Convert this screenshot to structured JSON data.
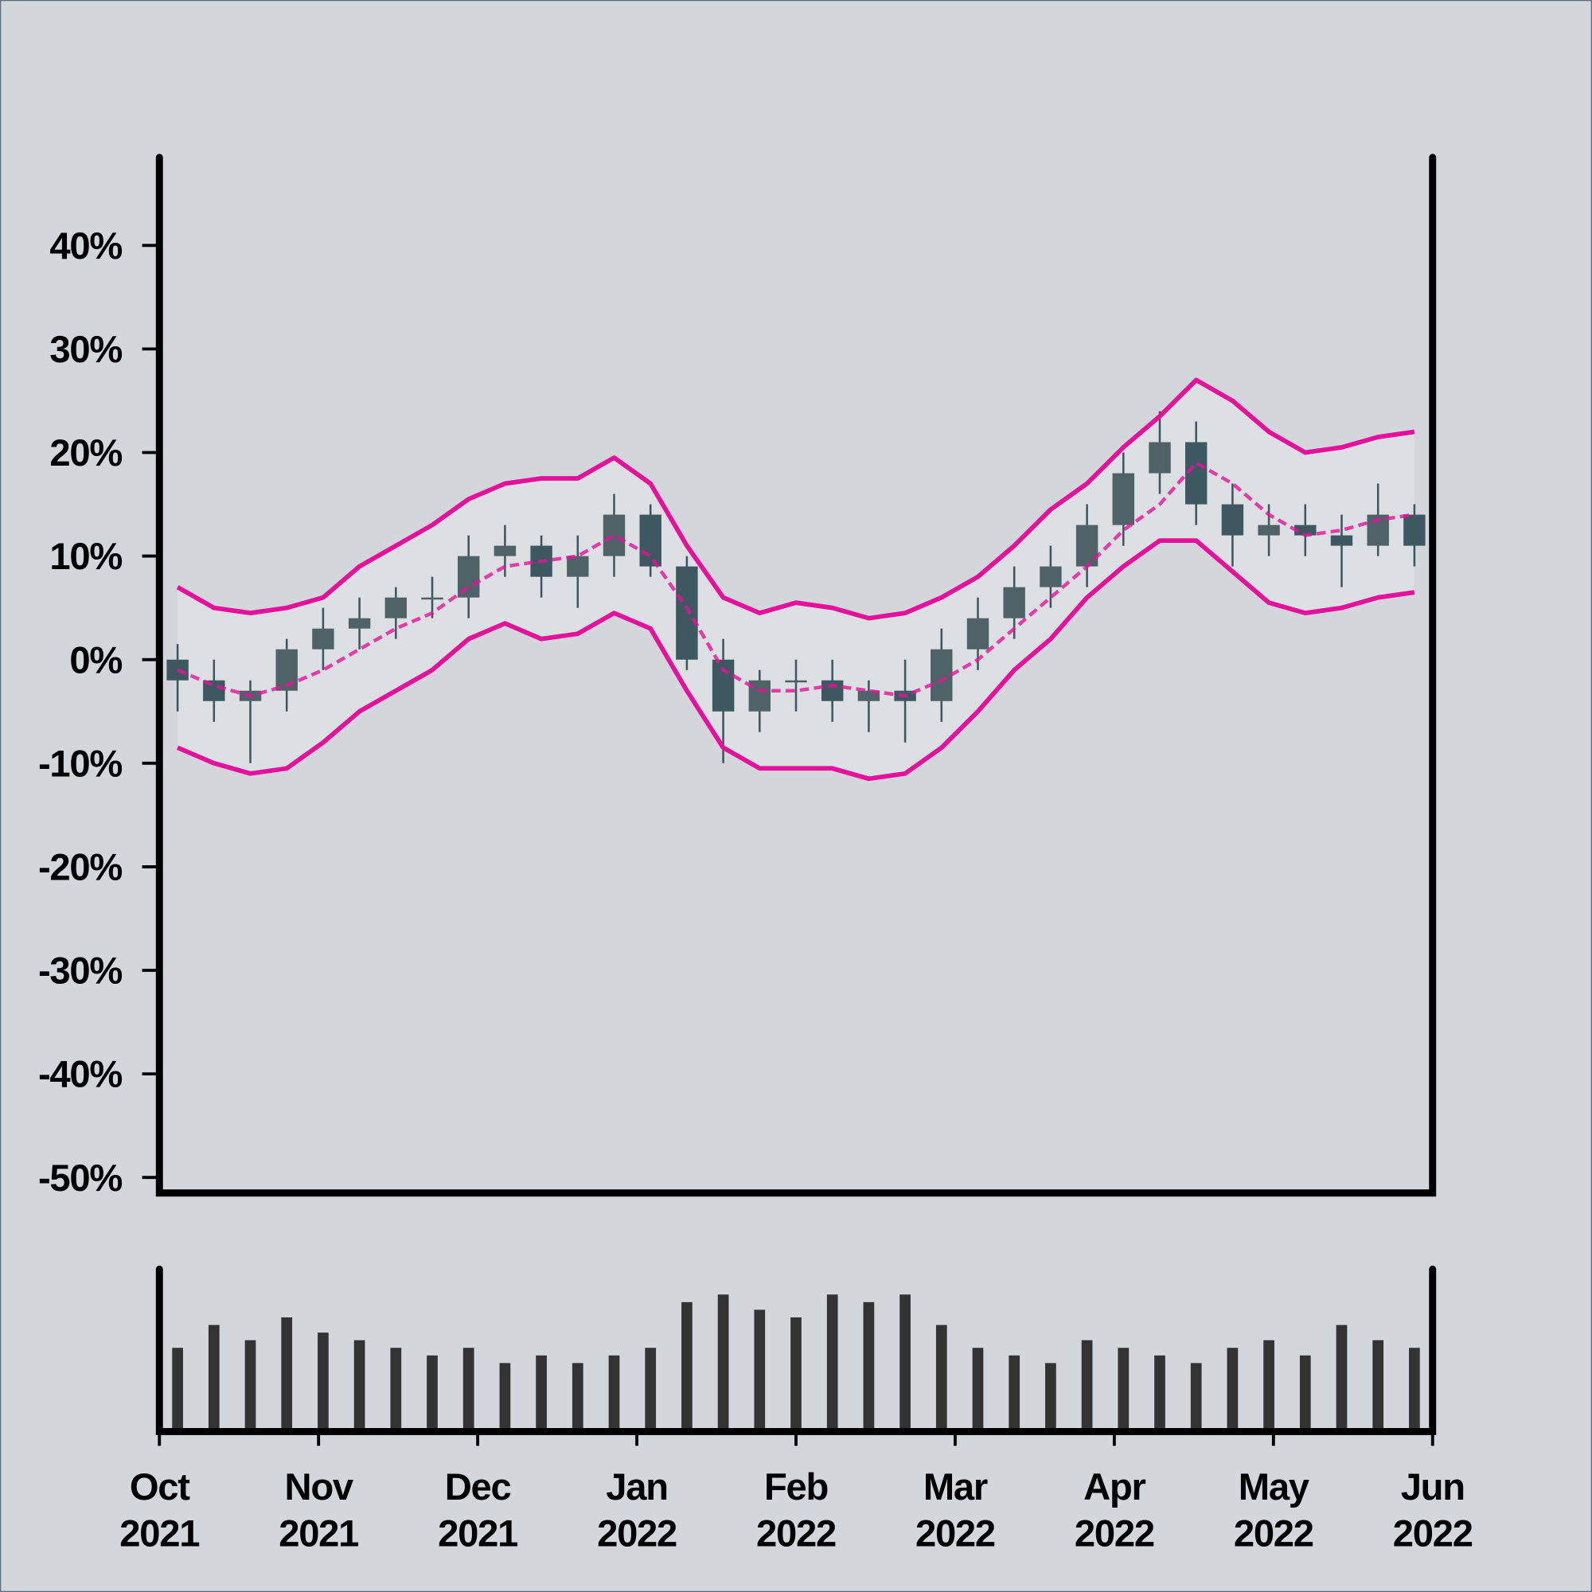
{
  "chart_data": {
    "type": "candlestick",
    "xlim": [
      "2021-10",
      "2022-06"
    ],
    "xticks": [
      {
        "value": "2021-10",
        "label": [
          "Oct",
          "2021"
        ]
      },
      {
        "value": "2021-11",
        "label": [
          "Nov",
          "2021"
        ]
      },
      {
        "value": "2021-12",
        "label": [
          "Dec",
          "2021"
        ]
      },
      {
        "value": "2022-01",
        "label": [
          "Jan",
          "2022"
        ]
      },
      {
        "value": "2022-02",
        "label": [
          "Feb",
          "2022"
        ]
      },
      {
        "value": "2022-03",
        "label": [
          "Mar",
          "2022"
        ]
      },
      {
        "value": "2022-04",
        "label": [
          "Apr",
          "2022"
        ]
      },
      {
        "value": "2022-05",
        "label": [
          "May",
          "2022"
        ]
      },
      {
        "value": "2022-06",
        "label": [
          "Jun",
          "2022"
        ]
      }
    ],
    "ylim": [
      -51.5,
      48.5
    ],
    "yticks": [
      {
        "value": 40,
        "label": "40%"
      },
      {
        "value": 30,
        "label": "30%"
      },
      {
        "value": 20,
        "label": "20%"
      },
      {
        "value": 10,
        "label": "10%"
      },
      {
        "value": 0,
        "label": "0%"
      },
      {
        "value": -10,
        "label": "-10%"
      },
      {
        "value": -20,
        "label": "-20%"
      },
      {
        "value": -30,
        "label": "-30%"
      },
      {
        "value": -40,
        "label": "-40%"
      },
      {
        "value": -50,
        "label": "-50%"
      }
    ],
    "candles": {
      "color": "#3d5860",
      "open": [
        0,
        -2,
        -4,
        -3,
        1,
        3,
        4,
        6,
        6,
        10,
        11,
        8,
        10,
        14,
        9,
        0,
        -5,
        -2,
        -2,
        -4,
        -3,
        -4,
        1,
        4,
        7,
        9,
        13,
        18,
        21,
        15,
        12,
        13,
        12,
        11,
        14
      ],
      "high": [
        1.5,
        0,
        -2,
        2,
        5,
        6,
        7,
        8,
        12,
        13,
        12,
        12,
        16,
        15,
        10,
        2,
        -1,
        0,
        0,
        -2,
        0,
        3,
        6,
        9,
        11,
        15,
        20,
        24,
        23,
        17,
        15,
        15,
        14,
        17,
        15
      ],
      "low": [
        -5,
        -6,
        -10,
        -5,
        -1,
        1,
        2,
        4,
        4,
        8,
        6,
        5,
        8,
        8,
        -1,
        -10,
        -7,
        -5,
        -6,
        -7,
        -8,
        -6,
        -1,
        2,
        5,
        7,
        11,
        16,
        13,
        9,
        10,
        10,
        7,
        10,
        9
      ],
      "close": [
        -2,
        -4,
        -3,
        1,
        3,
        4,
        6,
        6,
        10,
        11,
        8,
        10,
        14,
        9,
        0,
        -5,
        -2,
        -2,
        -4,
        -3,
        -4,
        1,
        4,
        7,
        9,
        13,
        18,
        21,
        15,
        12,
        13,
        12,
        11,
        14,
        11
      ]
    },
    "bands": {
      "color": "#e6119a",
      "upper": [
        7,
        5,
        4.5,
        5,
        6,
        9,
        11,
        13,
        15.5,
        17,
        17.5,
        17.5,
        19.5,
        17,
        11,
        6,
        4.5,
        5.5,
        5,
        4,
        4.5,
        6,
        8,
        11,
        14.5,
        17,
        20.5,
        23.5,
        27,
        25,
        22,
        20,
        20.5,
        21.5,
        22
      ],
      "middle": [
        -1,
        -2.5,
        -3.5,
        -2.5,
        -1,
        1,
        3,
        4.5,
        7,
        9,
        9.5,
        10,
        12,
        10,
        5,
        -1,
        -3,
        -3,
        -2.5,
        -3,
        -3.5,
        -2,
        0,
        3,
        6,
        9,
        12.5,
        15,
        19,
        17,
        14,
        12,
        12.5,
        13.5,
        14
      ],
      "lower": [
        -8.5,
        -10,
        -11,
        -10.5,
        -8,
        -5,
        -3,
        -1,
        2,
        3.5,
        2,
        2.5,
        4.5,
        3,
        -3,
        -8.5,
        -10.5,
        -10.5,
        -10.5,
        -11.5,
        -11,
        -8.5,
        -5,
        -1,
        2,
        6,
        9,
        11.5,
        11.5,
        8.5,
        5.5,
        4.5,
        5,
        6,
        6.5
      ]
    },
    "volume": {
      "color": "#333333",
      "ylim": [
        0,
        100
      ],
      "values": [
        55,
        70,
        60,
        75,
        65,
        60,
        55,
        50,
        55,
        45,
        50,
        45,
        50,
        55,
        85,
        90,
        80,
        75,
        90,
        85,
        90,
        70,
        55,
        50,
        45,
        60,
        55,
        50,
        45,
        55,
        60,
        50,
        70,
        60,
        55
      ]
    }
  }
}
